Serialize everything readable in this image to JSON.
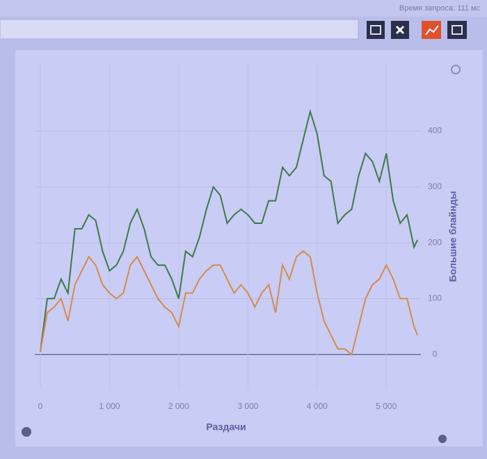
{
  "header": {
    "request_time": "Время запроса: 111 мс"
  },
  "chart_data": {
    "type": "line",
    "x_label": "Раздачи",
    "y_label": "Большие блайнды",
    "x": [
      0,
      100,
      200,
      300,
      400,
      500,
      600,
      700,
      800,
      900,
      1000,
      1100,
      1200,
      1300,
      1400,
      1500,
      1600,
      1700,
      1800,
      1900,
      2000,
      2100,
      2200,
      2300,
      2400,
      2500,
      2600,
      2700,
      2800,
      2900,
      3000,
      3100,
      3200,
      3300,
      3400,
      3500,
      3600,
      3700,
      3800,
      3900,
      4000,
      4100,
      4200,
      4300,
      4400,
      4500,
      4600,
      4700,
      4800,
      4900,
      5000,
      5100,
      5200,
      5300,
      5400,
      5450
    ],
    "series": [
      {
        "color": "#3b7a48",
        "values": [
          5,
          100,
          100,
          135,
          110,
          225,
          225,
          250,
          240,
          185,
          150,
          160,
          185,
          235,
          260,
          225,
          175,
          160,
          160,
          135,
          100,
          185,
          175,
          210,
          260,
          300,
          285,
          235,
          250,
          260,
          250,
          235,
          235,
          275,
          275,
          335,
          320,
          335,
          385,
          435,
          395,
          320,
          310,
          235,
          250,
          260,
          320,
          360,
          345,
          310,
          360,
          275,
          235,
          250,
          192,
          205
        ]
      },
      {
        "color": "#d68a4c",
        "values": [
          5,
          75,
          85,
          100,
          60,
          125,
          150,
          175,
          160,
          125,
          110,
          100,
          110,
          160,
          175,
          150,
          125,
          100,
          85,
          75,
          50,
          110,
          110,
          135,
          150,
          160,
          160,
          135,
          110,
          125,
          110,
          85,
          110,
          125,
          75,
          160,
          135,
          175,
          185,
          175,
          110,
          60,
          35,
          10,
          10,
          0,
          50,
          100,
          125,
          135,
          160,
          135,
          100,
          100,
          50,
          35
        ]
      }
    ],
    "xlim": [
      -80,
      5500
    ],
    "ylim": [
      -60,
      520
    ],
    "xticks": [
      0,
      {
        "value": 1000,
        "label": "1 000"
      },
      {
        "value": 2000,
        "label": "2 000"
      },
      {
        "value": 3000,
        "label": "3 000"
      },
      {
        "value": 4000,
        "label": "4 000"
      },
      {
        "value": 5000,
        "label": "5 000"
      }
    ],
    "yticks": [
      0,
      100,
      200,
      300,
      400
    ],
    "grid": true
  }
}
